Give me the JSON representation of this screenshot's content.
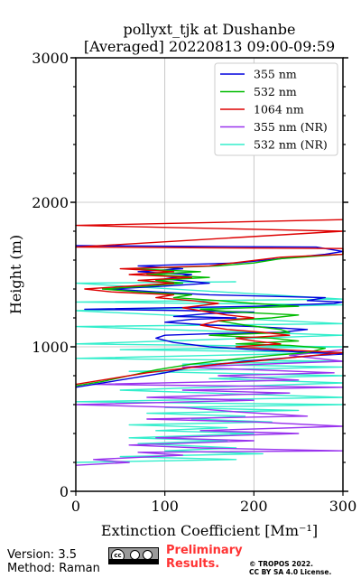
{
  "chart_data": {
    "type": "line",
    "title_line1": "pollyxt_tjk at Dushanbe",
    "title_line2": "[Averaged] 20220813 09:00-09:59",
    "xlabel": "Extinction Coefficient [Mm⁻¹]",
    "ylabel": "Height (m)",
    "xlim": [
      0,
      300
    ],
    "ylim": [
      0,
      3000
    ],
    "xticks": [
      "0",
      "100",
      "200",
      "300"
    ],
    "yticks": [
      "0",
      "1000",
      "2000",
      "3000"
    ],
    "grid": true,
    "legend_position": "top-right",
    "series": [
      {
        "name": "355 nm",
        "color": "#0000dd",
        "points": [
          [
            0,
            720
          ],
          [
            40,
            760
          ],
          [
            70,
            790
          ],
          [
            100,
            820
          ],
          [
            130,
            860
          ],
          [
            160,
            880
          ],
          [
            190,
            900
          ],
          [
            230,
            920
          ],
          [
            270,
            940
          ],
          [
            300,
            950
          ],
          [
            200,
            980
          ],
          [
            150,
            1000
          ],
          [
            110,
            1030
          ],
          [
            90,
            1060
          ],
          [
            100,
            1080
          ],
          [
            150,
            1090
          ],
          [
            230,
            1100
          ],
          [
            260,
            1120
          ],
          [
            200,
            1140
          ],
          [
            150,
            1150
          ],
          [
            100,
            1170
          ],
          [
            130,
            1190
          ],
          [
            180,
            1200
          ],
          [
            110,
            1210
          ],
          [
            150,
            1230
          ],
          [
            200,
            1240
          ],
          [
            130,
            1250
          ],
          [
            10,
            1260
          ],
          [
            200,
            1280
          ],
          [
            290,
            1300
          ],
          [
            300,
            1310
          ],
          [
            260,
            1320
          ],
          [
            280,
            1340
          ],
          [
            150,
            1360
          ],
          [
            90,
            1380
          ],
          [
            40,
            1400
          ],
          [
            100,
            1420
          ],
          [
            150,
            1440
          ],
          [
            100,
            1470
          ],
          [
            130,
            1500
          ],
          [
            70,
            1520
          ],
          [
            120,
            1540
          ],
          [
            70,
            1560
          ],
          [
            180,
            1580
          ],
          [
            230,
            1610
          ],
          [
            280,
            1640
          ],
          [
            300,
            1660
          ],
          [
            270,
            1690
          ],
          [
            0,
            1700
          ]
        ]
      },
      {
        "name": "532 nm",
        "color": "#00bb00",
        "points": [
          [
            0,
            730
          ],
          [
            30,
            760
          ],
          [
            60,
            800
          ],
          [
            90,
            840
          ],
          [
            130,
            880
          ],
          [
            170,
            910
          ],
          [
            220,
            940
          ],
          [
            260,
            960
          ],
          [
            280,
            990
          ],
          [
            240,
            1010
          ],
          [
            180,
            1020
          ],
          [
            250,
            1040
          ],
          [
            220,
            1060
          ],
          [
            150,
            1080
          ],
          [
            240,
            1100
          ],
          [
            230,
            1120
          ],
          [
            190,
            1150
          ],
          [
            160,
            1180
          ],
          [
            220,
            1200
          ],
          [
            250,
            1220
          ],
          [
            180,
            1240
          ],
          [
            140,
            1260
          ],
          [
            250,
            1280
          ],
          [
            200,
            1300
          ],
          [
            160,
            1320
          ],
          [
            110,
            1340
          ],
          [
            130,
            1360
          ],
          [
            70,
            1380
          ],
          [
            30,
            1400
          ],
          [
            80,
            1420
          ],
          [
            120,
            1440
          ],
          [
            90,
            1460
          ],
          [
            150,
            1480
          ],
          [
            80,
            1500
          ],
          [
            140,
            1520
          ],
          [
            60,
            1540
          ],
          [
            160,
            1560
          ],
          [
            200,
            1580
          ],
          [
            230,
            1610
          ],
          [
            300,
            1640
          ],
          [
            300,
            1660
          ]
        ]
      },
      {
        "name": "1064 nm",
        "color": "#dd0000",
        "points": [
          [
            0,
            740
          ],
          [
            40,
            780
          ],
          [
            80,
            820
          ],
          [
            120,
            850
          ],
          [
            160,
            880
          ],
          [
            200,
            900
          ],
          [
            250,
            930
          ],
          [
            300,
            960
          ],
          [
            230,
            980
          ],
          [
            180,
            1000
          ],
          [
            230,
            1020
          ],
          [
            200,
            1040
          ],
          [
            180,
            1060
          ],
          [
            240,
            1080
          ],
          [
            210,
            1100
          ],
          [
            170,
            1120
          ],
          [
            140,
            1150
          ],
          [
            160,
            1180
          ],
          [
            200,
            1200
          ],
          [
            170,
            1220
          ],
          [
            140,
            1250
          ],
          [
            120,
            1270
          ],
          [
            160,
            1300
          ],
          [
            130,
            1320
          ],
          [
            90,
            1340
          ],
          [
            110,
            1360
          ],
          [
            40,
            1380
          ],
          [
            10,
            1400
          ],
          [
            60,
            1420
          ],
          [
            110,
            1440
          ],
          [
            70,
            1460
          ],
          [
            130,
            1480
          ],
          [
            60,
            1500
          ],
          [
            110,
            1520
          ],
          [
            50,
            1540
          ],
          [
            150,
            1560
          ],
          [
            190,
            1590
          ],
          [
            230,
            1620
          ],
          [
            300,
            1640
          ],
          [
            300,
            1660
          ],
          [
            300,
            1680
          ],
          [
            0,
            1690
          ],
          [
            300,
            1800
          ],
          [
            0,
            1840
          ],
          [
            300,
            1880
          ]
        ]
      },
      {
        "name": "355 nm (NR)",
        "color": "#9933ee",
        "points": [
          [
            0,
            180
          ],
          [
            60,
            200
          ],
          [
            20,
            220
          ],
          [
            120,
            250
          ],
          [
            70,
            270
          ],
          [
            300,
            280
          ],
          [
            140,
            300
          ],
          [
            60,
            320
          ],
          [
            200,
            350
          ],
          [
            90,
            370
          ],
          [
            250,
            400
          ],
          [
            140,
            420
          ],
          [
            300,
            450
          ],
          [
            200,
            480
          ],
          [
            80,
            500
          ],
          [
            260,
            520
          ],
          [
            180,
            550
          ],
          [
            120,
            580
          ],
          [
            0,
            600
          ],
          [
            200,
            630
          ],
          [
            80,
            650
          ],
          [
            240,
            680
          ],
          [
            120,
            700
          ],
          [
            300,
            720
          ],
          [
            20,
            740
          ],
          [
            250,
            770
          ],
          [
            160,
            800
          ],
          [
            290,
            820
          ],
          [
            120,
            860
          ],
          [
            300,
            900
          ],
          [
            240,
            940
          ],
          [
            300,
            980
          ]
        ]
      },
      {
        "name": "532 nm (NR)",
        "color": "#33eecc",
        "points": [
          [
            0,
            200
          ],
          [
            180,
            220
          ],
          [
            50,
            240
          ],
          [
            210,
            260
          ],
          [
            100,
            280
          ],
          [
            180,
            300
          ],
          [
            70,
            330
          ],
          [
            170,
            350
          ],
          [
            60,
            370
          ],
          [
            200,
            400
          ],
          [
            90,
            420
          ],
          [
            170,
            440
          ],
          [
            60,
            460
          ],
          [
            220,
            480
          ],
          [
            130,
            500
          ],
          [
            190,
            520
          ],
          [
            80,
            540
          ],
          [
            250,
            560
          ],
          [
            100,
            580
          ],
          [
            300,
            600
          ],
          [
            0,
            620
          ],
          [
            300,
            650
          ],
          [
            50,
            700
          ],
          [
            300,
            750
          ],
          [
            150,
            780
          ],
          [
            300,
            800
          ],
          [
            60,
            830
          ],
          [
            300,
            860
          ],
          [
            120,
            880
          ],
          [
            300,
            900
          ],
          [
            0,
            920
          ],
          [
            300,
            960
          ],
          [
            50,
            980
          ],
          [
            300,
            1000
          ],
          [
            0,
            1020
          ],
          [
            300,
            1080
          ],
          [
            0,
            1140
          ],
          [
            300,
            1160
          ],
          [
            0,
            1250
          ],
          [
            300,
            1290
          ],
          [
            0,
            1310
          ],
          [
            300,
            1330
          ],
          [
            0,
            1440
          ],
          [
            180,
            1450
          ]
        ]
      }
    ]
  },
  "footer": {
    "version": "Version: 3.5",
    "method": "Method: Raman",
    "preliminary_line1": "Preliminary",
    "preliminary_line2": "Results.",
    "copyright_line1": "© TROPOS 2022.",
    "copyright_line2": "CC BY SA 4.0 License."
  }
}
